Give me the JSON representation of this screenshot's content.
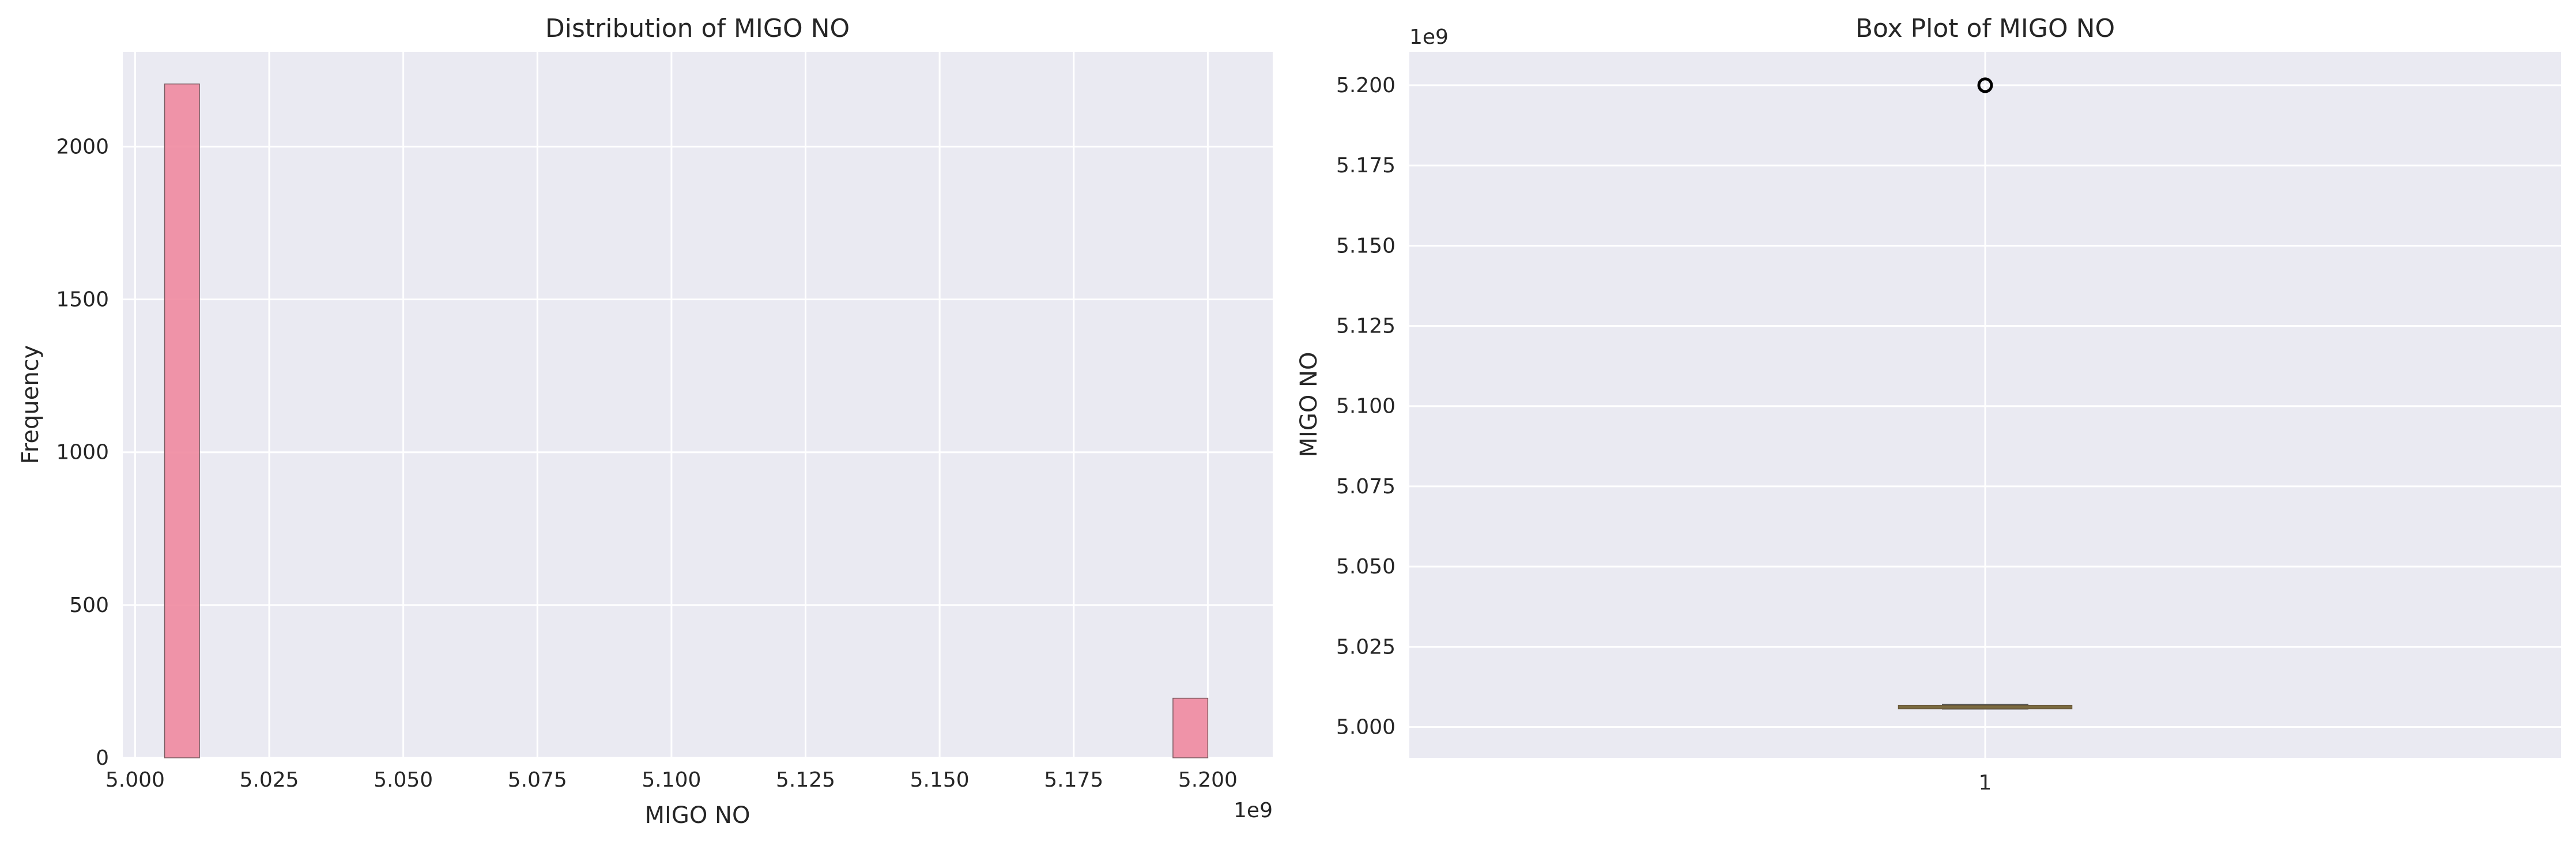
{
  "chart_data": [
    {
      "type": "bar",
      "title": "Distribution of MIGO NO",
      "xlabel": "MIGO NO",
      "ylabel": "Frequency",
      "x_offset_label": "1e9",
      "xlim": [
        4.9977,
        5.2121
      ],
      "ylim": [
        0,
        2310
      ],
      "xticks": [
        5.0,
        5.025,
        5.05,
        5.075,
        5.1,
        5.125,
        5.15,
        5.175,
        5.2
      ],
      "xtick_labels": [
        "5.000",
        "5.025",
        "5.050",
        "5.075",
        "5.100",
        "5.125",
        "5.150",
        "5.175",
        "5.200"
      ],
      "yticks": [
        0,
        500,
        1000,
        1500,
        2000
      ],
      "ytick_labels": [
        "0",
        "500",
        "1000",
        "1500",
        "2000"
      ],
      "bins": [
        {
          "x0": 5.0055,
          "x1": 5.012,
          "count": 2205
        },
        {
          "x0": 5.1935,
          "x1": 5.2,
          "count": 195
        }
      ],
      "bar_color": "#f08aa0",
      "grid": true
    },
    {
      "type": "box",
      "title": "Box Plot of MIGO NO",
      "ylabel": "MIGO NO",
      "y_offset_label": "1e9",
      "category": "1",
      "ylim": [
        4.9904,
        5.2104
      ],
      "yticks": [
        5.0,
        5.025,
        5.05,
        5.075,
        5.1,
        5.125,
        5.15,
        5.175,
        5.2
      ],
      "ytick_labels": [
        "5.000",
        "5.025",
        "5.050",
        "5.075",
        "5.100",
        "5.125",
        "5.150",
        "5.175",
        "5.200"
      ],
      "box": {
        "whisker_low": 5.0057,
        "q1": 5.0058,
        "median": 5.0062,
        "q3": 5.0067,
        "whisker_high": 5.0069
      },
      "outliers": [
        5.2
      ],
      "box_color": "#c8a070",
      "median_color": "#7a6a40",
      "grid": true
    }
  ]
}
